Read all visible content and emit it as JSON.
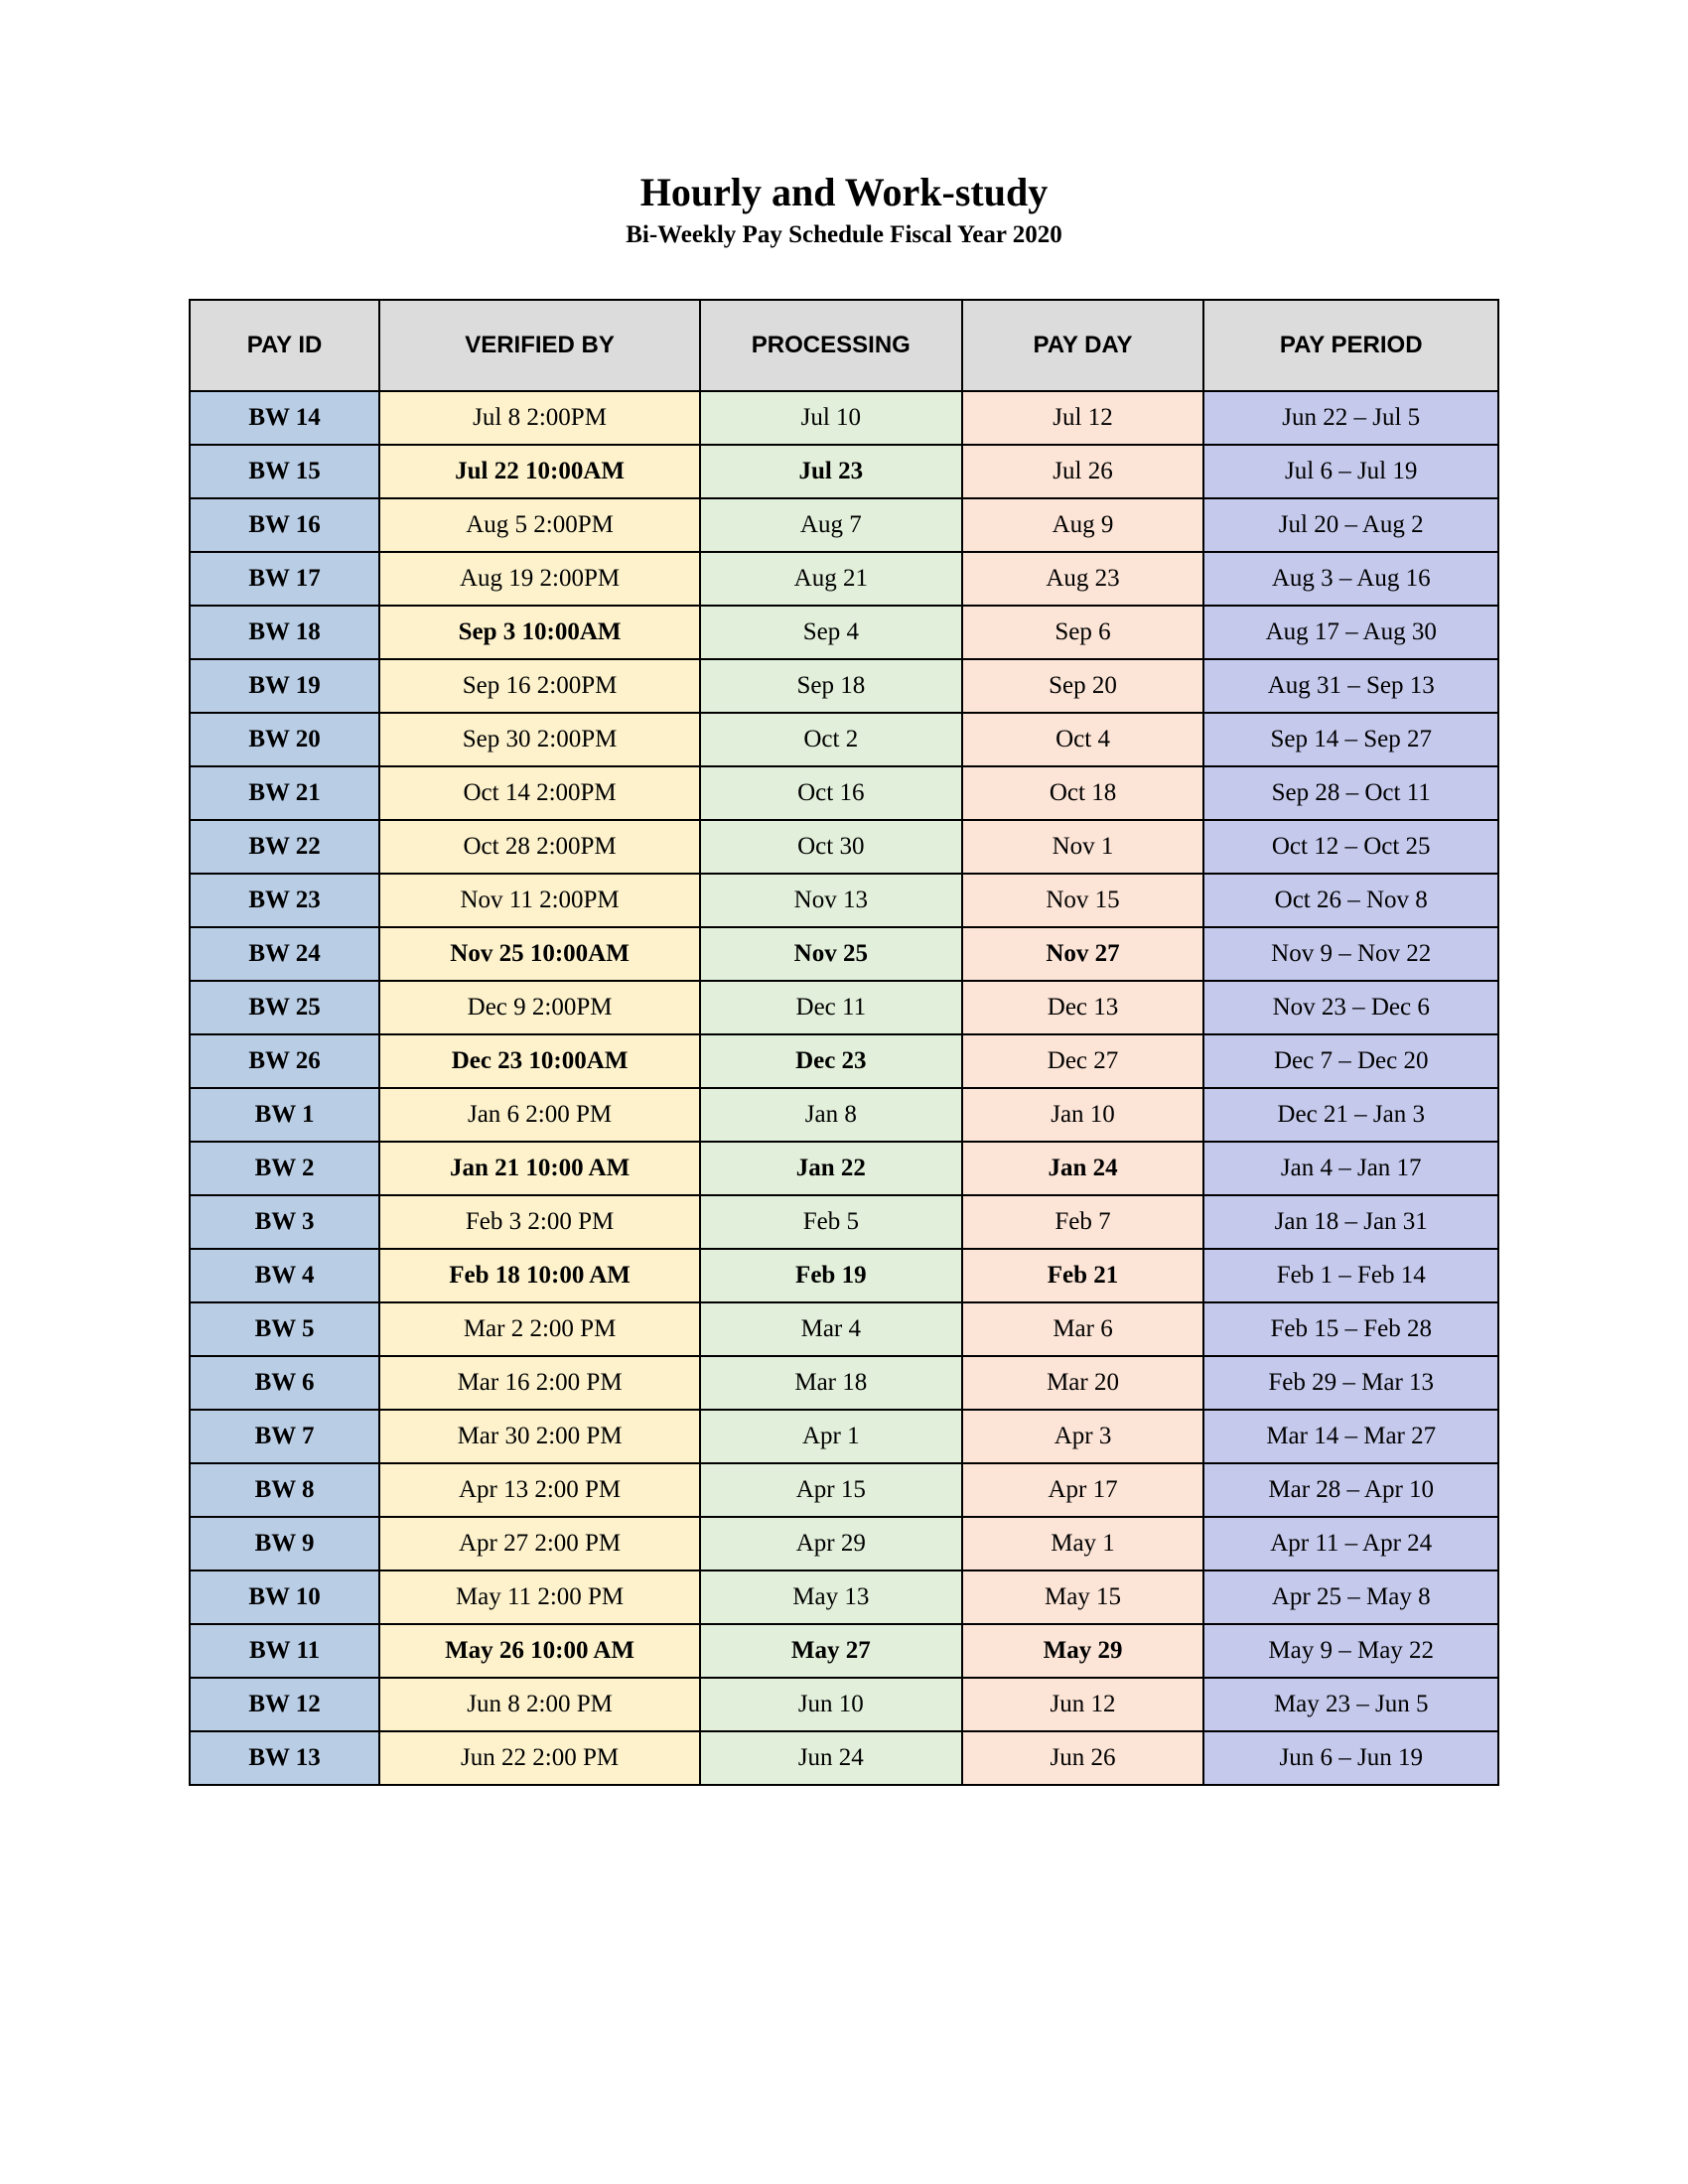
{
  "title": "Hourly and Work-study",
  "subtitle": "Bi-Weekly Pay Schedule Fiscal Year 2020",
  "table": {
    "columns": [
      "PAY ID",
      "VERIFIED BY",
      "PROCESSING",
      "PAY DAY",
      "PAY PERIOD"
    ],
    "column_widths": [
      "14.5%",
      "24.5%",
      "20%",
      "18.5%",
      "22.5%"
    ],
    "header_bg": "#dcdcdc",
    "col_bg": {
      "pay_id": "#b9cde5",
      "verified_by": "#fdf2cc",
      "processing": "#e2efda",
      "pay_day": "#fce4d6",
      "pay_period": "#c5c9ec"
    },
    "border_color": "#000000",
    "rows": [
      {
        "pay_id": "BW 14",
        "verified_by": "Jul 8  2:00PM",
        "processing": "Jul 10",
        "pay_day": "Jul 12",
        "pay_period": "Jun 22 – Jul 5",
        "bold": false
      },
      {
        "pay_id": "BW 15",
        "verified_by": "Jul 22  10:00AM",
        "processing": "Jul 23",
        "pay_day": "Jul 26",
        "pay_period": "Jul 6 – Jul 19",
        "bold": true,
        "bold_cols": [
          "verified_by",
          "processing"
        ]
      },
      {
        "pay_id": "BW 16",
        "verified_by": "Aug 5  2:00PM",
        "processing": "Aug 7",
        "pay_day": "Aug 9",
        "pay_period": "Jul 20 – Aug 2",
        "bold": false
      },
      {
        "pay_id": "BW 17",
        "verified_by": "Aug 19  2:00PM",
        "processing": "Aug 21",
        "pay_day": "Aug 23",
        "pay_period": "Aug 3 – Aug 16",
        "bold": false
      },
      {
        "pay_id": "BW 18",
        "verified_by": "Sep 3  10:00AM",
        "processing": "Sep 4",
        "pay_day": "Sep 6",
        "pay_period": "Aug 17 – Aug 30",
        "bold": true,
        "bold_cols": [
          "verified_by"
        ]
      },
      {
        "pay_id": "BW 19",
        "verified_by": "Sep 16  2:00PM",
        "processing": "Sep 18",
        "pay_day": "Sep 20",
        "pay_period": "Aug 31 – Sep 13",
        "bold": false
      },
      {
        "pay_id": "BW 20",
        "verified_by": "Sep 30  2:00PM",
        "processing": "Oct 2",
        "pay_day": "Oct 4",
        "pay_period": "Sep 14 – Sep 27",
        "bold": false
      },
      {
        "pay_id": "BW 21",
        "verified_by": "Oct 14  2:00PM",
        "processing": "Oct 16",
        "pay_day": "Oct 18",
        "pay_period": "Sep 28 – Oct 11",
        "bold": false
      },
      {
        "pay_id": "BW 22",
        "verified_by": "Oct 28  2:00PM",
        "processing": "Oct 30",
        "pay_day": "Nov 1",
        "pay_period": "Oct 12 – Oct 25",
        "bold": false
      },
      {
        "pay_id": "BW 23",
        "verified_by": "Nov 11  2:00PM",
        "processing": "Nov 13",
        "pay_day": "Nov 15",
        "pay_period": "Oct 26 – Nov 8",
        "bold": false
      },
      {
        "pay_id": "BW 24",
        "verified_by": "Nov 25 10:00AM",
        "processing": "Nov 25",
        "pay_day": "Nov 27",
        "pay_period": "Nov 9 – Nov 22",
        "bold": true,
        "bold_cols": [
          "verified_by",
          "processing",
          "pay_day"
        ]
      },
      {
        "pay_id": "BW 25",
        "verified_by": "Dec 9  2:00PM",
        "processing": "Dec 11",
        "pay_day": "Dec 13",
        "pay_period": "Nov 23 – Dec 6",
        "bold": false
      },
      {
        "pay_id": "BW 26",
        "verified_by": "Dec 23 10:00AM",
        "processing": "Dec 23",
        "pay_day": "Dec 27",
        "pay_period": "Dec 7 – Dec 20",
        "bold": true,
        "bold_cols": [
          "verified_by",
          "processing"
        ]
      },
      {
        "pay_id": "BW 1",
        "verified_by": "Jan 6  2:00 PM",
        "processing": "Jan 8",
        "pay_day": "Jan 10",
        "pay_period": "Dec 21 – Jan 3",
        "bold": false
      },
      {
        "pay_id": "BW 2",
        "verified_by": "Jan 21  10:00 AM",
        "processing": "Jan 22",
        "pay_day": "Jan 24",
        "pay_period": "Jan 4 – Jan 17",
        "bold": true,
        "bold_cols": [
          "verified_by",
          "processing",
          "pay_day"
        ]
      },
      {
        "pay_id": "BW 3",
        "verified_by": "Feb 3  2:00 PM",
        "processing": "Feb 5",
        "pay_day": "Feb 7",
        "pay_period": "Jan 18 – Jan 31",
        "bold": false
      },
      {
        "pay_id": "BW 4",
        "verified_by": "Feb 18  10:00 AM",
        "processing": "Feb 19",
        "pay_day": "Feb 21",
        "pay_period": "Feb 1 – Feb 14",
        "bold": true,
        "bold_cols": [
          "verified_by",
          "processing",
          "pay_day"
        ]
      },
      {
        "pay_id": "BW 5",
        "verified_by": "Mar 2  2:00 PM",
        "processing": "Mar 4",
        "pay_day": "Mar 6",
        "pay_period": "Feb 15 – Feb 28",
        "bold": false
      },
      {
        "pay_id": "BW 6",
        "verified_by": "Mar 16  2:00 PM",
        "processing": "Mar 18",
        "pay_day": "Mar 20",
        "pay_period": "Feb 29 – Mar 13",
        "bold": false
      },
      {
        "pay_id": "BW 7",
        "verified_by": "Mar 30  2:00 PM",
        "processing": "Apr 1",
        "pay_day": "Apr 3",
        "pay_period": "Mar 14 – Mar 27",
        "bold": false
      },
      {
        "pay_id": "BW 8",
        "verified_by": "Apr 13  2:00 PM",
        "processing": "Apr 15",
        "pay_day": "Apr 17",
        "pay_period": "Mar 28 – Apr 10",
        "bold": false
      },
      {
        "pay_id": "BW 9",
        "verified_by": "Apr 27  2:00 PM",
        "processing": "Apr 29",
        "pay_day": "May 1",
        "pay_period": "Apr 11 – Apr 24",
        "bold": false
      },
      {
        "pay_id": "BW 10",
        "verified_by": "May 11  2:00 PM",
        "processing": "May 13",
        "pay_day": "May 15",
        "pay_period": "Apr 25 – May 8",
        "bold": false
      },
      {
        "pay_id": "BW 11",
        "verified_by": "May 26  10:00 AM",
        "processing": "May 27",
        "pay_day": "May 29",
        "pay_period": "May 9 – May 22",
        "bold": true,
        "bold_cols": [
          "verified_by",
          "processing",
          "pay_day"
        ]
      },
      {
        "pay_id": "BW 12",
        "verified_by": "Jun 8  2:00 PM",
        "processing": "Jun 10",
        "pay_day": "Jun 12",
        "pay_period": "May 23 – Jun 5",
        "bold": false
      },
      {
        "pay_id": "BW 13",
        "verified_by": "Jun 22  2:00 PM",
        "processing": "Jun 24",
        "pay_day": "Jun 26",
        "pay_period": "Jun 6 – Jun 19",
        "bold": false
      }
    ]
  }
}
